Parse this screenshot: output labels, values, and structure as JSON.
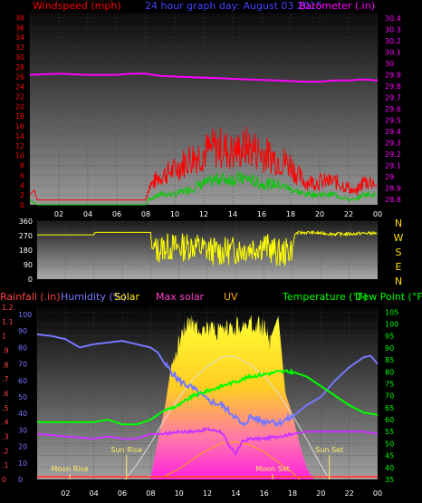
{
  "title": "24 hour graph day:  August 03 2015",
  "colors": {
    "wind": "#ff0000",
    "gust": "#00cc00",
    "baro": "#ff00ff",
    "dir": "#ffff00",
    "rain": "#ff4444",
    "humidity": "#7777ff",
    "solar": "#ffee00",
    "maxsolar": "#ff44cc",
    "uv": "#ffaa00",
    "temp": "#00ff00",
    "dew": "#00ff00"
  },
  "chart_data": [
    {
      "type": "line",
      "title": "24 hour graph day:  August 03 2015",
      "left_label": "Windspeed (mph)",
      "right_label": "Barometer (.in)",
      "y_left_ticks": [
        "0",
        "2",
        "4",
        "6",
        "8",
        "10",
        "12",
        "14",
        "16",
        "18",
        "20",
        "22",
        "24",
        "26",
        "28",
        "30",
        "32",
        "34",
        "36",
        "38"
      ],
      "y_left_range": [
        0,
        39
      ],
      "y_right_ticks": [
        "28.8",
        "28.9",
        "29",
        "29.1",
        "29.2",
        "29.3",
        "29.4",
        "29.5",
        "29.6",
        "29.7",
        "29.8",
        "29.9",
        "30",
        "30.1",
        "30.2",
        "30.3",
        "30.4"
      ],
      "y_right_range": [
        28.75,
        30.45
      ],
      "x_ticks": [
        "02",
        "04",
        "06",
        "08",
        "10",
        "12",
        "14",
        "16",
        "18",
        "20",
        "22",
        "00"
      ],
      "x_range": [
        0,
        24
      ],
      "series": [
        {
          "key": "barometer",
          "x": [
            0,
            2,
            4,
            6,
            7,
            8,
            9,
            11,
            13,
            15,
            17,
            19,
            20,
            21,
            22,
            23,
            24
          ],
          "values": [
            29.9,
            29.91,
            29.9,
            29.9,
            29.91,
            29.91,
            29.89,
            29.88,
            29.87,
            29.86,
            29.85,
            29.84,
            29.84,
            29.85,
            29.85,
            29.86,
            29.85
          ]
        },
        {
          "key": "windspeed",
          "x": [
            0,
            0.3,
            0.5,
            8,
            8.2,
            9,
            10,
            11,
            12,
            13,
            14,
            15,
            16,
            17,
            18,
            18.5,
            19,
            20,
            21,
            22,
            22.5,
            23,
            24
          ],
          "values": [
            2,
            3,
            1,
            1,
            3,
            5,
            6,
            8,
            9,
            10,
            9,
            10,
            9,
            8,
            7,
            5,
            4,
            4,
            4,
            3,
            2,
            4,
            4
          ]
        },
        {
          "key": "gust",
          "x": [
            0,
            0.5,
            8,
            8.2,
            9,
            10,
            11,
            12,
            13,
            14,
            15,
            16,
            17,
            18,
            19,
            20,
            21,
            22,
            22.5,
            23,
            24
          ],
          "values": [
            1,
            0,
            0,
            1,
            2,
            2,
            3,
            4,
            5,
            5,
            5,
            4,
            4,
            3,
            2,
            2,
            2,
            1,
            1,
            2,
            2
          ]
        }
      ]
    },
    {
      "type": "line",
      "y_ticks": [
        "0",
        "90",
        "180",
        "270",
        "360"
      ],
      "y_range": [
        0,
        360
      ],
      "compass_labels": [
        "N",
        "W",
        "S",
        "E",
        "N"
      ],
      "x_range": [
        0,
        24
      ],
      "series": [
        {
          "key": "direction",
          "x": [
            0,
            4,
            4.1,
            6.5,
            8,
            8.1,
            8.5,
            9,
            10,
            11,
            12,
            13,
            14,
            15,
            16,
            17,
            17.5,
            18,
            18.2,
            19,
            20,
            21,
            22,
            23,
            24
          ],
          "values": [
            275,
            275,
            290,
            290,
            290,
            190,
            180,
            200,
            195,
            210,
            180,
            170,
            180,
            195,
            210,
            160,
            165,
            200,
            285,
            290,
            285,
            280,
            280,
            285,
            285
          ]
        }
      ]
    },
    {
      "type": "line",
      "labels": {
        "rainfall": "Rainfall (.in)",
        "humidity": "Humidity (%)",
        "solar": "Solar",
        "max_solar": "Max solar",
        "uv": "UV",
        "temperature": "Temperature (°F)",
        "dew_point": "Dew Point (°F)"
      },
      "y_left_outer_ticks": [
        "0",
        ".1",
        ".2",
        ".3",
        ".4",
        ".5",
        ".6",
        ".7",
        ".8",
        ".9",
        "1",
        "1.1",
        "1.2"
      ],
      "y_left_inner_ticks": [
        "0",
        "10",
        "20",
        "30",
        "40",
        "50",
        "60",
        "70",
        "80",
        "90",
        "100"
      ],
      "y_right_ticks": [
        "35",
        "40",
        "45",
        "50",
        "55",
        "60",
        "65",
        "70",
        "75",
        "80",
        "85",
        "90",
        "95",
        "100",
        "105"
      ],
      "y_right_range": [
        35,
        107
      ],
      "x_range": [
        0,
        24
      ],
      "annotations": [
        {
          "text": "Moon Rise",
          "x": 2.3,
          "y_level": "bottom"
        },
        {
          "text": "Sun Rise",
          "x": 6.3,
          "y_level": "middle"
        },
        {
          "text": "Moon Set",
          "x": 16.6,
          "y_level": "bottom"
        },
        {
          "text": "Sun Set",
          "x": 20.6,
          "y_level": "middle"
        }
      ],
      "series": [
        {
          "key": "humidity",
          "x": [
            0,
            1,
            2,
            3,
            4,
            5,
            6,
            7,
            8,
            8.5,
            9,
            10,
            11,
            12,
            13,
            14,
            14.5,
            15,
            16,
            16.5,
            17,
            18,
            19,
            20,
            21,
            22,
            23,
            23.5,
            24
          ],
          "values": [
            88,
            87,
            85,
            80,
            82,
            83,
            84,
            82,
            80,
            77,
            70,
            60,
            55,
            48,
            45,
            38,
            32,
            38,
            35,
            36,
            34,
            38,
            45,
            50,
            60,
            68,
            74,
            75,
            70
          ]
        },
        {
          "key": "temperature",
          "x": [
            0,
            2,
            4,
            5,
            6,
            7,
            8,
            8.5,
            9,
            10,
            11,
            12,
            13,
            14,
            15,
            16,
            17,
            18,
            19,
            20,
            21,
            22,
            23,
            24
          ],
          "values": [
            59,
            59,
            59,
            60,
            58,
            58,
            60,
            62,
            64,
            66,
            70,
            72,
            74,
            76,
            78,
            79,
            80,
            80,
            78,
            74,
            70,
            66,
            63,
            62
          ]
        },
        {
          "key": "dew_point",
          "x": [
            0,
            2,
            4,
            5,
            6,
            7,
            8,
            9,
            10,
            11,
            12,
            13,
            13.5,
            14,
            14.5,
            15,
            16,
            17,
            18,
            19,
            20,
            21,
            22,
            23,
            24
          ],
          "values": [
            54,
            53,
            52,
            53,
            52,
            52,
            54,
            54,
            55,
            55,
            56,
            55,
            49,
            46,
            51,
            52,
            52,
            53,
            54,
            55,
            55,
            55,
            55,
            55,
            54
          ]
        },
        {
          "key": "max_solar",
          "x": [
            6.2,
            7,
            8,
            9,
            10,
            11,
            12,
            13,
            13.5,
            14,
            15,
            16,
            17,
            18,
            19,
            20,
            20.6
          ],
          "values": [
            0,
            100,
            250,
            420,
            570,
            700,
            790,
            850,
            860,
            855,
            800,
            720,
            600,
            450,
            280,
            100,
            0
          ]
        },
        {
          "key": "solar",
          "x": [
            8,
            8.2,
            8.6,
            9,
            9.5,
            10,
            10.5,
            11,
            12,
            13,
            14,
            15,
            16,
            16.5,
            17,
            17.5,
            18,
            18.5,
            19,
            19.5
          ],
          "values": [
            0,
            120,
            320,
            500,
            820,
            1050,
            1160,
            1150,
            1120,
            1090,
            1140,
            1150,
            1130,
            1000,
            1140,
            600,
            450,
            250,
            80,
            0
          ]
        },
        {
          "key": "uv",
          "x": [
            9,
            10,
            11,
            12,
            13,
            14,
            15,
            16,
            17,
            18,
            18.5
          ],
          "values": [
            0.2,
            0.6,
            1.2,
            1.7,
            2.1,
            2.2,
            2.0,
            1.6,
            1.0,
            0.4,
            0
          ]
        }
      ]
    }
  ]
}
